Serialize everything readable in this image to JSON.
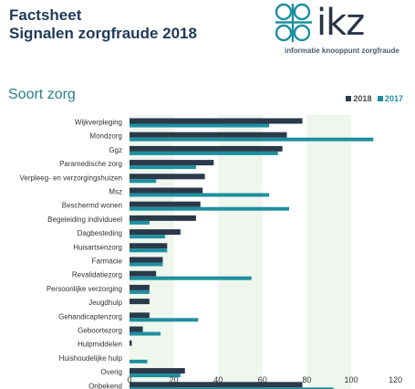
{
  "header": {
    "title_line1": "Factsheet",
    "title_line2": "Signalen zorgfraude 2018",
    "logo_text": "ikz",
    "logo_subtitle": "informatie knooppunt zorgfraude"
  },
  "section_title": "Soort zorg",
  "colors": {
    "s2018": "#2a3a4a",
    "s2017": "#1e8f9f",
    "band": "#eef6ee"
  },
  "chart_data": {
    "type": "bar",
    "orientation": "horizontal",
    "categories": [
      "Wijkverpleging",
      "Mondzorg",
      "Ggz",
      "Paramedische zorg",
      "Verpleeg- en verzorgingshuizen",
      "Msz",
      "Beschermd wonen",
      "Begeleiding individueel",
      "Dagbesteding",
      "Huisartsenzorg",
      "Farmacie",
      "Revalidatiezorg",
      "Persoonlijke verzorging",
      "Jeugdhulp",
      "Gehandicaptenzorg",
      "Geboortezorg",
      "Hulpmiddelen",
      "Huishoudelijke hulp",
      "Overig",
      "Onbekend"
    ],
    "series": [
      {
        "name": "2018",
        "values": [
          78,
          71,
          69,
          38,
          34,
          33,
          32,
          30,
          23,
          17,
          15,
          12,
          9,
          9,
          9,
          6,
          1,
          0,
          25,
          78
        ]
      },
      {
        "name": "2017",
        "values": [
          63,
          110,
          67,
          30,
          12,
          63,
          72,
          9,
          16,
          17,
          15,
          55,
          9,
          0,
          31,
          14,
          0,
          8,
          23,
          92
        ]
      }
    ],
    "xticks": [
      0,
      20,
      40,
      60,
      80,
      100,
      120
    ],
    "xlim": [
      0,
      120
    ],
    "legend_position": "top-right",
    "grid": false
  }
}
